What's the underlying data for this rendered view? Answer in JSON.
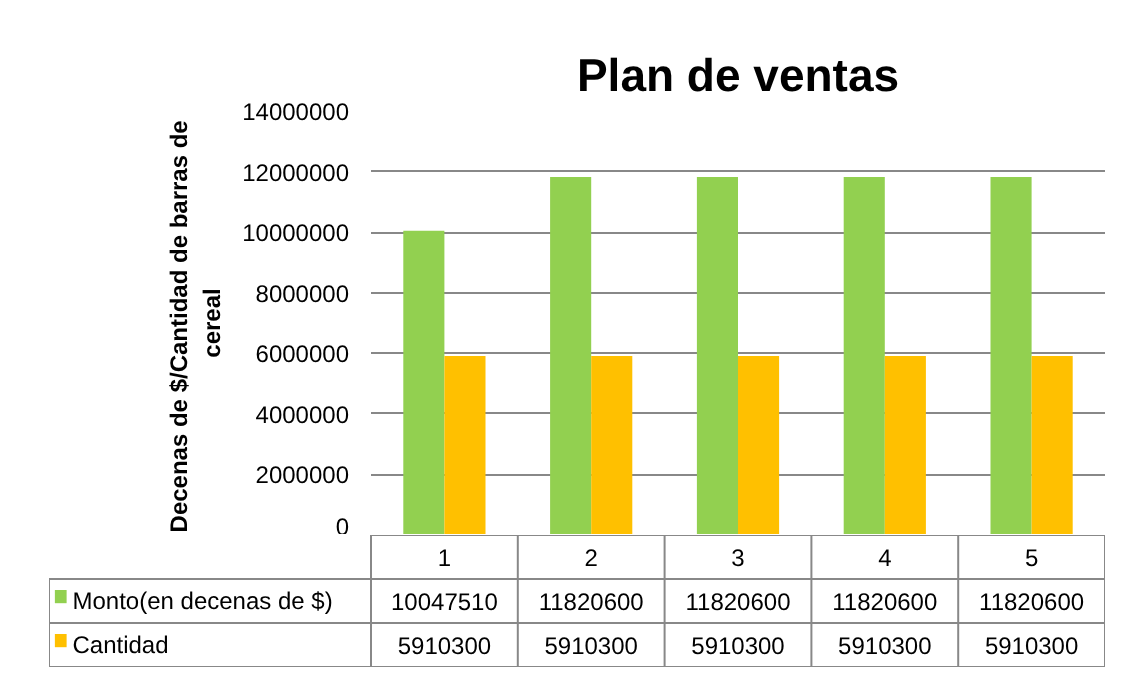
{
  "chart_data": {
    "type": "bar",
    "title": "Plan de ventas",
    "ylabel": "Decenas  de $/Cantidad de barras de cereal",
    "categories": [
      "1",
      "2",
      "3",
      "4",
      "5"
    ],
    "series": [
      {
        "name": "Monto(en decenas de $)",
        "color": "#92d050",
        "values": [
          10047510,
          11820600,
          11820600,
          11820600,
          11820600
        ]
      },
      {
        "name": "Cantidad",
        "color": "#ffc000",
        "values": [
          5910300,
          5910300,
          5910300,
          5910300,
          5910300
        ]
      }
    ],
    "ylim": [
      0,
      14000000
    ],
    "yticks": [
      0,
      2000000,
      4000000,
      6000000,
      8000000,
      10000000,
      12000000,
      14000000
    ],
    "grid": "y",
    "legend": "bottom",
    "data_labels": true
  }
}
